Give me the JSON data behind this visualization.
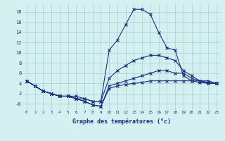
{
  "xlabel": "Graphe des températures (°c)",
  "bg_color": "#d4f0f0",
  "grid_color": "#a8cece",
  "line_color": "#1a3080",
  "xlim_min": -0.5,
  "xlim_max": 23.5,
  "ylim_min": -1.2,
  "ylim_max": 19.5,
  "yticks": [
    0,
    2,
    4,
    6,
    8,
    10,
    12,
    14,
    16,
    18
  ],
  "ytick_labels": [
    "-0",
    "2",
    "4",
    "6",
    "8",
    "10",
    "12",
    "14",
    "16",
    "18"
  ],
  "xticks": [
    0,
    1,
    2,
    3,
    4,
    5,
    6,
    7,
    8,
    9,
    10,
    11,
    12,
    13,
    14,
    15,
    16,
    17,
    18,
    19,
    20,
    21,
    22,
    23
  ],
  "curve1": [
    4.5,
    3.5,
    2.5,
    2.0,
    1.5,
    1.5,
    1.5,
    1.0,
    0.5,
    0.5,
    10.5,
    12.5,
    15.5,
    18.5,
    18.5,
    17.5,
    14.0,
    11.0,
    10.5,
    5.5,
    4.5,
    4.5,
    4.0,
    4.0
  ],
  "curve2": [
    4.5,
    3.5,
    2.5,
    2.0,
    1.5,
    1.5,
    1.0,
    1.0,
    0.5,
    0.5,
    5.0,
    6.5,
    7.5,
    8.5,
    9.0,
    9.5,
    9.5,
    9.0,
    8.5,
    6.5,
    5.5,
    4.5,
    4.5,
    4.0
  ],
  "curve3": [
    4.5,
    3.5,
    2.5,
    2.0,
    1.5,
    1.5,
    1.0,
    0.5,
    -0.2,
    -0.5,
    3.5,
    4.0,
    4.5,
    5.0,
    5.5,
    6.0,
    6.5,
    6.5,
    6.0,
    6.0,
    5.0,
    4.5,
    4.2,
    4.0
  ],
  "curve4": [
    4.5,
    3.5,
    2.5,
    2.0,
    1.5,
    1.5,
    1.0,
    0.5,
    -0.2,
    -0.5,
    3.0,
    3.5,
    3.8,
    4.0,
    4.2,
    4.5,
    4.5,
    4.5,
    4.5,
    4.5,
    4.5,
    4.2,
    4.0,
    4.0
  ]
}
